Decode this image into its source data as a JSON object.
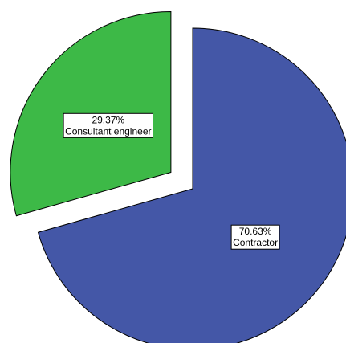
{
  "chart_data": {
    "type": "pie",
    "categories": [
      "Contractor",
      "Consultant engineer"
    ],
    "values": [
      70.63,
      29.37
    ],
    "value_labels": [
      "70.63%",
      "29.37%"
    ],
    "colors": [
      "#4457a7",
      "#3db947"
    ],
    "exploded": [
      false,
      true
    ],
    "legend": "none",
    "title": ""
  }
}
